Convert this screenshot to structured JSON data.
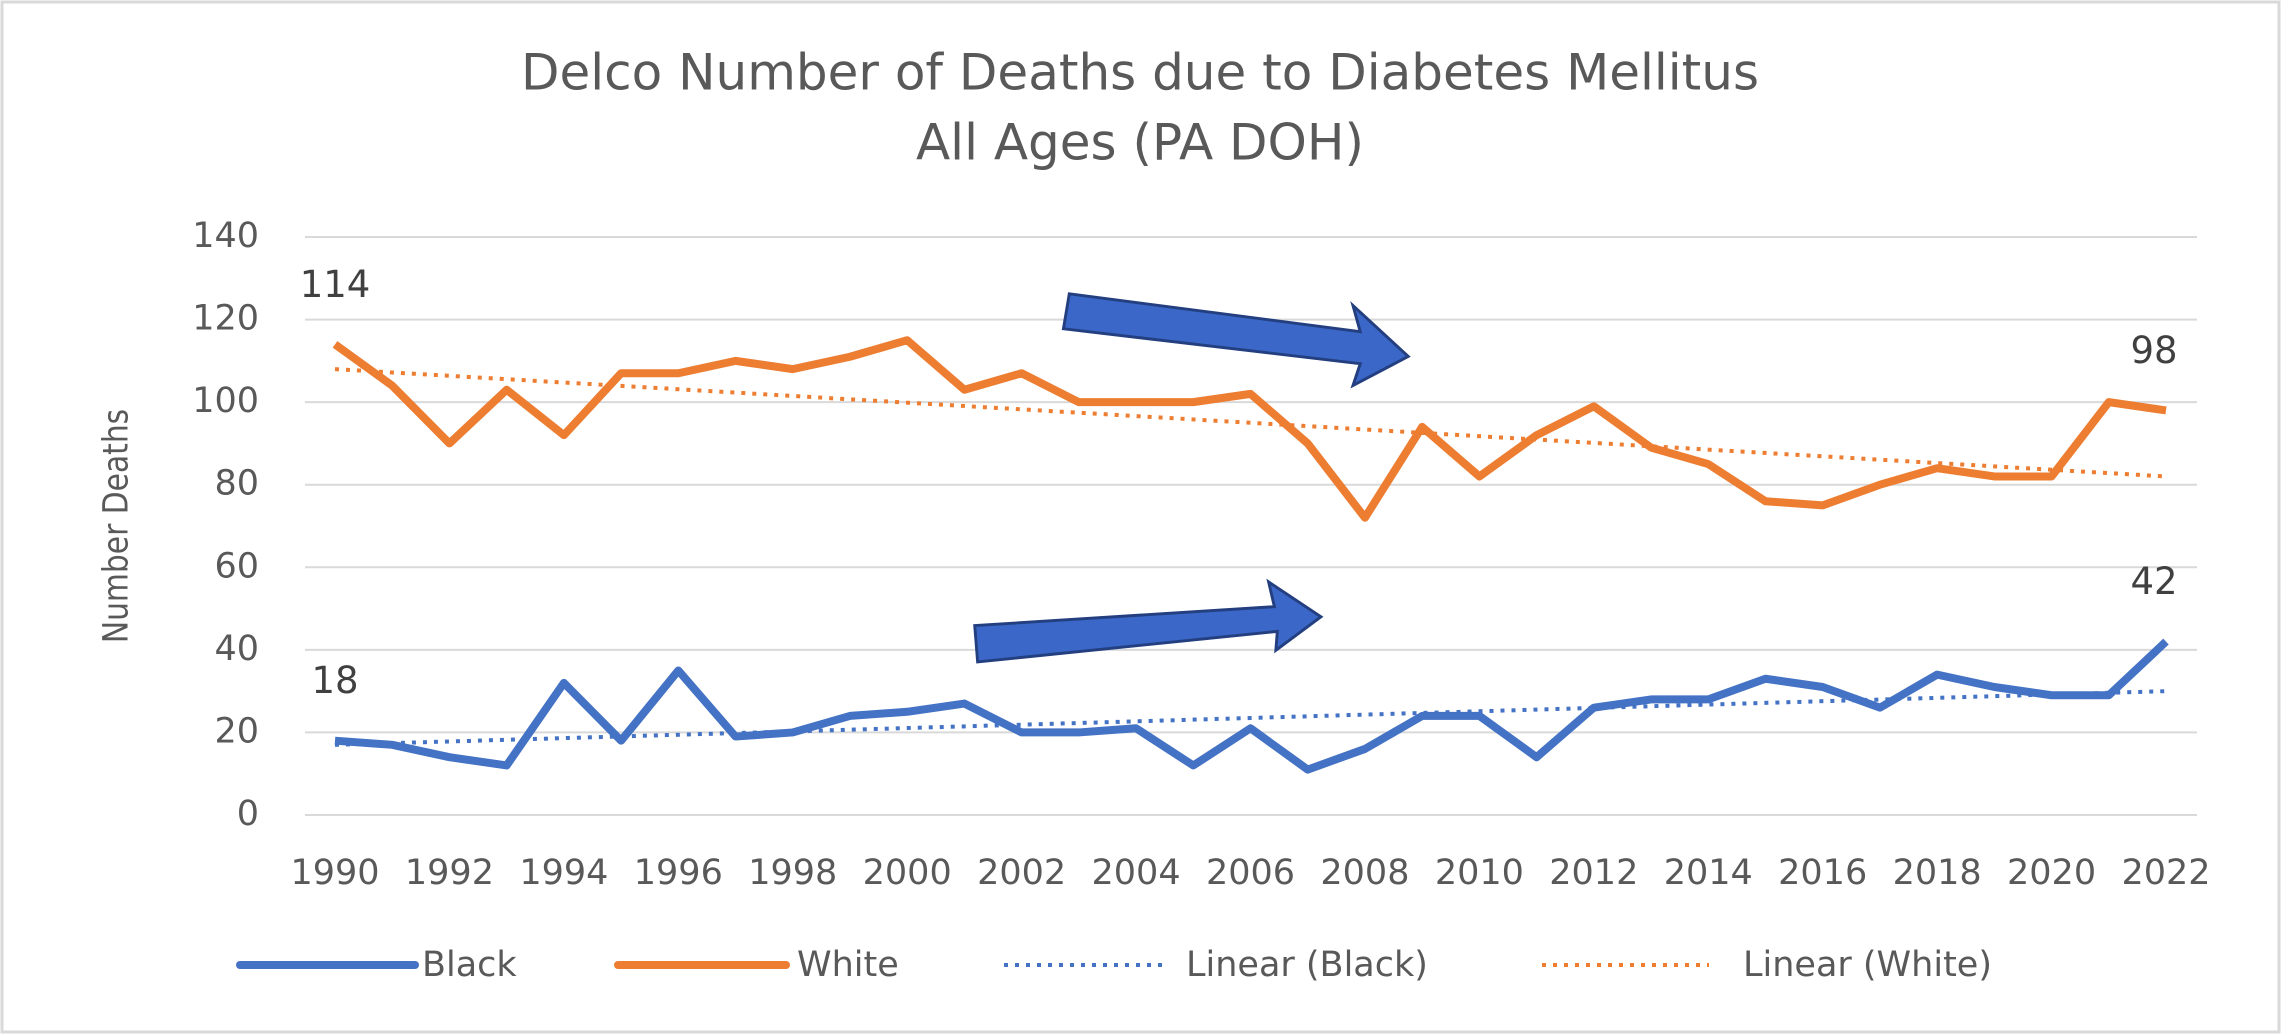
{
  "chart_data": {
    "type": "line",
    "title": [
      "Delco Number of Deaths due to Diabetes Mellitus",
      "All Ages (PA DOH)"
    ],
    "y_label": "Number Deaths",
    "x": [
      1990,
      1991,
      1992,
      1993,
      1994,
      1995,
      1996,
      1997,
      1998,
      1999,
      2000,
      2001,
      2002,
      2003,
      2004,
      2005,
      2006,
      2007,
      2008,
      2009,
      2010,
      2011,
      2012,
      2013,
      2014,
      2015,
      2016,
      2017,
      2018,
      2019,
      2020,
      2021,
      2022
    ],
    "xlim": [
      1990,
      2022
    ],
    "xticks": [
      1990,
      1992,
      1994,
      1996,
      1998,
      2000,
      2002,
      2004,
      2006,
      2008,
      2010,
      2012,
      2014,
      2016,
      2018,
      2020,
      2022
    ],
    "ylim": [
      0,
      140
    ],
    "yticks": [
      0,
      20,
      40,
      60,
      80,
      100,
      120,
      140
    ],
    "grid": true,
    "legend": "bottom",
    "series": [
      {
        "name": "Black",
        "color": "#4472c4",
        "label_indices": [
          0,
          32
        ],
        "values": [
          18,
          17,
          14,
          12,
          32,
          18,
          35,
          19,
          20,
          24,
          25,
          27,
          20,
          20,
          21,
          12,
          21,
          11,
          16,
          24,
          24,
          14,
          26,
          28,
          28,
          33,
          31,
          26,
          34,
          31,
          29,
          29,
          42
        ]
      },
      {
        "name": "White",
        "color": "#ed7d31",
        "label_indices": [
          0,
          32
        ],
        "values": [
          114,
          104,
          90,
          103,
          92,
          107,
          107,
          110,
          108,
          111,
          115,
          103,
          107,
          100,
          100,
          100,
          102,
          90,
          72,
          94,
          82,
          92,
          99,
          89,
          85,
          76,
          75,
          80,
          84,
          82,
          82,
          100,
          98
        ]
      },
      {
        "name": "Linear (Black)",
        "color": "#4472c4",
        "style": "dotted",
        "x": [
          1990,
          2022
        ],
        "values": [
          17,
          30
        ]
      },
      {
        "name": "Linear (White)",
        "color": "#ed7d31",
        "style": "dotted",
        "x": [
          1990,
          2022
        ],
        "values": [
          108,
          82
        ]
      }
    ]
  }
}
